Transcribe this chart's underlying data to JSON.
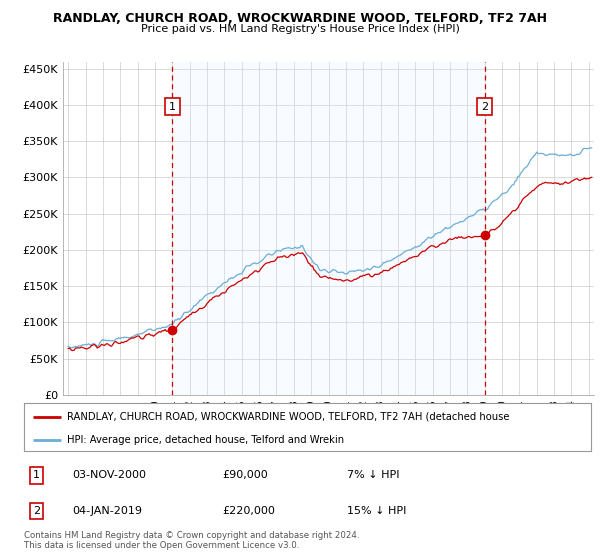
{
  "title": "RANDLAY, CHURCH ROAD, WROCKWARDINE WOOD, TELFORD, TF2 7AH",
  "subtitle": "Price paid vs. HM Land Registry's House Price Index (HPI)",
  "ylabel_ticks": [
    "£0",
    "£50K",
    "£100K",
    "£150K",
    "£200K",
    "£250K",
    "£300K",
    "£350K",
    "£400K",
    "£450K"
  ],
  "ytick_vals": [
    0,
    50000,
    100000,
    150000,
    200000,
    250000,
    300000,
    350000,
    400000,
    450000
  ],
  "ylim": [
    0,
    460000
  ],
  "xlim_start": 1994.7,
  "xlim_end": 2025.3,
  "xticks": [
    1995,
    1996,
    1997,
    1998,
    1999,
    2000,
    2001,
    2002,
    2003,
    2004,
    2005,
    2006,
    2007,
    2008,
    2009,
    2010,
    2011,
    2012,
    2013,
    2014,
    2015,
    2016,
    2017,
    2018,
    2019,
    2020,
    2021,
    2022,
    2023,
    2024,
    2025
  ],
  "sale1_x": 2001.0,
  "sale1_y": 90000,
  "sale1_label": "1",
  "sale1_date": "03-NOV-2000",
  "sale1_price": "£90,000",
  "sale1_hpi": "7% ↓ HPI",
  "sale2_x": 2019.0,
  "sale2_y": 220000,
  "sale2_label": "2",
  "sale2_date": "04-JAN-2019",
  "sale2_price": "£220,000",
  "sale2_hpi": "15% ↓ HPI",
  "hpi_color": "#6baed6",
  "sale_color": "#cc0000",
  "vline_color": "#cc0000",
  "shade_color": "#ddeeff",
  "background_color": "#ffffff",
  "plot_bg_color": "#ffffff",
  "legend_label_sale": "RANDLAY, CHURCH ROAD, WROCKWARDINE WOOD, TELFORD, TF2 7AH (detached house",
  "legend_label_hpi": "HPI: Average price, detached house, Telford and Wrekin",
  "footnote": "Contains HM Land Registry data © Crown copyright and database right 2024.\nThis data is licensed under the Open Government Licence v3.0."
}
